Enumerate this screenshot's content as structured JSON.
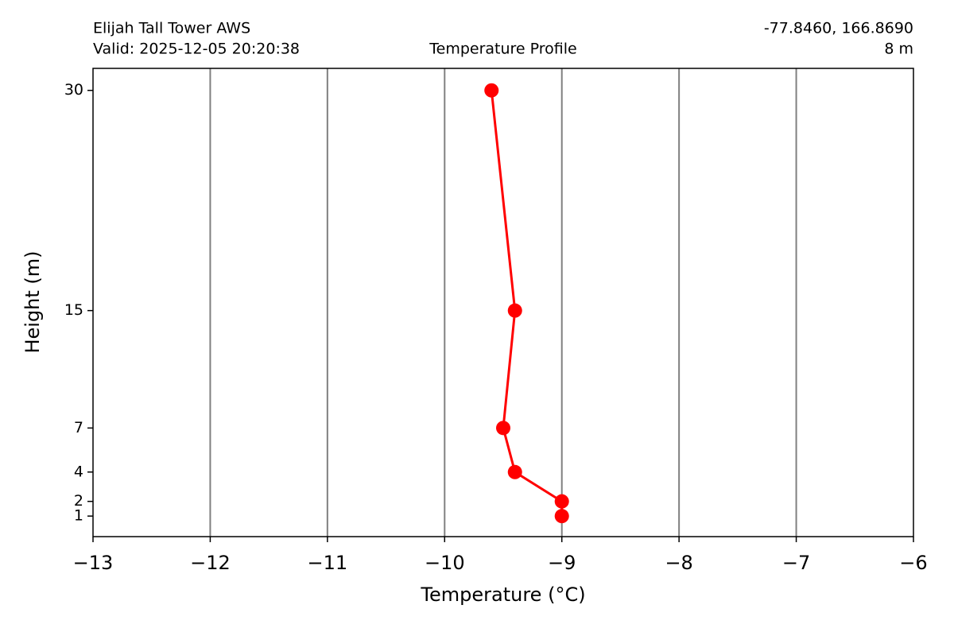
{
  "chart_data": {
    "type": "line",
    "title": "Temperature Profile",
    "station": "Elijah Tall Tower AWS",
    "valid": "Valid: 2025-12-05 20:20:38",
    "coords": "-77.8460, 166.8690",
    "elevation": "8 m",
    "xlabel": "Temperature (°C)",
    "ylabel": "Height (m)",
    "x": [
      -9.0,
      -9.0,
      -9.4,
      -9.5,
      -9.4,
      -9.6
    ],
    "y": [
      1,
      2,
      4,
      7,
      15,
      30
    ],
    "color": "#ff0000",
    "xlim": [
      -13,
      -6
    ],
    "xticks": [
      {
        "value": -13,
        "label": "−13"
      },
      {
        "value": -12,
        "label": "−12"
      },
      {
        "value": -11,
        "label": "−11"
      },
      {
        "value": -10,
        "label": "−10"
      },
      {
        "value": -9,
        "label": "−9"
      },
      {
        "value": -8,
        "label": "−8"
      },
      {
        "value": -7,
        "label": "−7"
      },
      {
        "value": -6,
        "label": "−6"
      }
    ],
    "ylim": [
      -0.4,
      31.5
    ],
    "yticks": [
      1,
      2,
      4,
      7,
      15,
      30
    ],
    "grid": true
  }
}
